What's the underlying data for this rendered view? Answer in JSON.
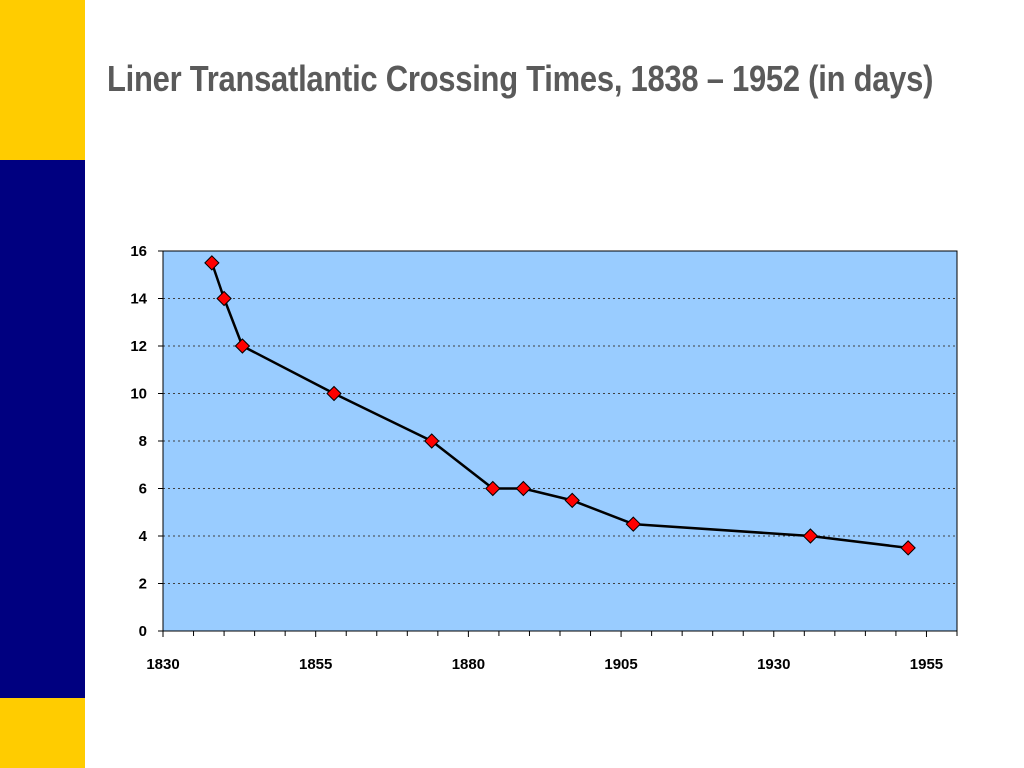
{
  "slide": {
    "title": "Liner Transatlantic Crossing Times, 1838 – 1952 (in days)"
  },
  "colors": {
    "accent_yellow": "#ffcc00",
    "accent_navy": "#000080",
    "plot_background": "#99ccff",
    "marker_fill": "#ff0000",
    "line": "#000000"
  },
  "chart_data": {
    "type": "line",
    "title": "Liner Transatlantic Crossing Times, 1838 – 1952 (in days)",
    "xlabel": "",
    "ylabel": "",
    "xlim": [
      1830,
      1960
    ],
    "ylim": [
      0,
      16
    ],
    "x_ticks": [
      1830,
      1855,
      1880,
      1905,
      1930,
      1955
    ],
    "x_minor_step": 5,
    "y_ticks": [
      0,
      2,
      4,
      6,
      8,
      10,
      12,
      14,
      16
    ],
    "grid": "horizontal dotted",
    "legend": "none",
    "marker": "diamond",
    "series": [
      {
        "x": [
          1838,
          1840,
          1843,
          1858,
          1874,
          1884,
          1889,
          1897,
          1907,
          1936,
          1952
        ],
        "y": [
          15.5,
          14,
          12,
          10,
          8,
          6,
          6,
          5.5,
          4.5,
          4,
          3.5
        ]
      }
    ]
  }
}
